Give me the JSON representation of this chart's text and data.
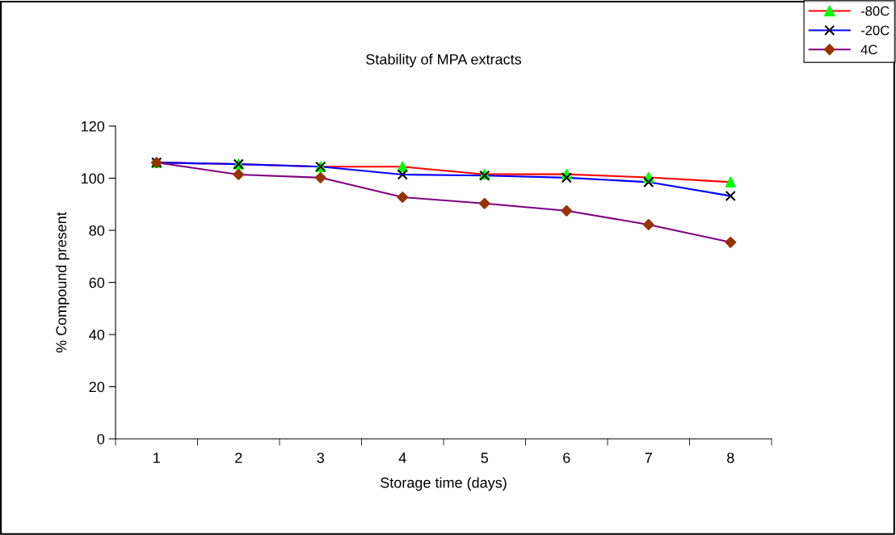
{
  "chart_data": {
    "type": "line",
    "title": "Stability of MPA extracts",
    "xlabel": "Storage time (days)",
    "ylabel": "% Compound present",
    "categories": [
      "1",
      "2",
      "3",
      "4",
      "5",
      "6",
      "7",
      "8"
    ],
    "series": [
      {
        "name": "-80C",
        "color": "#ff0000",
        "colors": [
          "#00ff00",
          "#00ff00",
          "#00ff00",
          "#00ff00",
          "#00ff00",
          "#00ff00",
          "#00ff00",
          "#00ff00"
        ],
        "marker": "triangle",
        "values": [
          106,
          105.4,
          104.4,
          104.4,
          101.5,
          101.5,
          100.3,
          98.5
        ]
      },
      {
        "name": "-20C",
        "color": "#0000ff",
        "colors": [
          "#000000",
          "#000000",
          "#000000",
          "#000000",
          "#000000",
          "#000000",
          "#000000",
          "#000000"
        ],
        "marker": "cross",
        "values": [
          106,
          105.4,
          104.4,
          101.4,
          101,
          100.2,
          98.5,
          93.2
        ]
      },
      {
        "name": "4C",
        "color": "#800080",
        "colors": [
          "#993300",
          "#993300",
          "#993300",
          "#993300",
          "#993300",
          "#993300",
          "#993300",
          "#993300"
        ],
        "marker": "diamond",
        "values": [
          106,
          101.4,
          100.2,
          92.7,
          90.3,
          87.5,
          82.2,
          75.4
        ]
      }
    ],
    "ylim": [
      0,
      120
    ],
    "yticks": [
      0,
      20,
      40,
      60,
      80,
      100,
      120
    ],
    "grid": false,
    "legend": "top right"
  }
}
